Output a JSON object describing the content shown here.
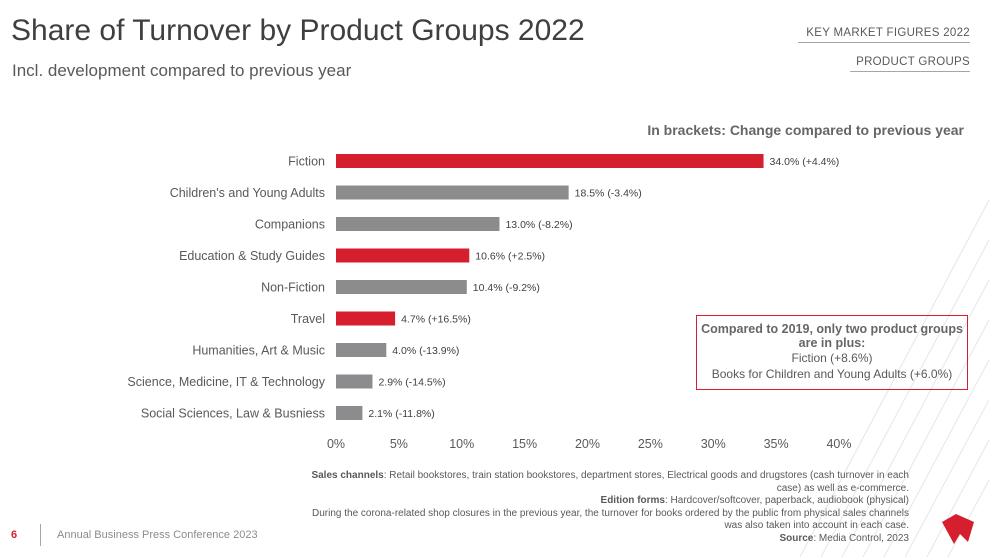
{
  "header": {
    "title": "Share of Turnover by Product Groups 2022",
    "subtitle": "Incl. development compared to previous year"
  },
  "nav": {
    "tab1": "KEY MARKET FIGURES 2022",
    "tab2": "PRODUCT GROUPS"
  },
  "colors": {
    "highlight": "#d61f2e",
    "neutral": "#8c8c8f",
    "text": "#595959"
  },
  "chart_data": {
    "type": "bar",
    "orientation": "horizontal",
    "note": "In brackets: Change compared to previous year",
    "categories": [
      "Fiction",
      "Children's and Young Adults",
      "Companions",
      "Education & Study Guides",
      "Non-Fiction",
      "Travel",
      "Humanities, Art & Music",
      "Science, Medicine, IT & Technology",
      "Social Sciences, Law & Busniess"
    ],
    "values": [
      34.0,
      18.5,
      13.0,
      10.6,
      10.4,
      4.7,
      4.0,
      2.9,
      2.1
    ],
    "changes": [
      4.4,
      -3.4,
      -8.2,
      2.5,
      -9.2,
      16.5,
      -13.9,
      -14.5,
      -11.8
    ],
    "data_labels": [
      "34.0% (+4.4%)",
      "18.5% (-3.4%)",
      "13.0% (-8.2%)",
      "10.6% (+2.5%)",
      "10.4% (-9.2%)",
      "4.7% (+16.5%)",
      "4.0% (-13.9%)",
      "2.9% (-14.5%)",
      "2.1% (-11.8%)"
    ],
    "xlim": [
      0,
      40
    ],
    "xticks": [
      0,
      5,
      10,
      15,
      20,
      25,
      30,
      35,
      40
    ],
    "xtick_labels": [
      "0%",
      "5%",
      "10%",
      "15%",
      "20%",
      "25%",
      "30%",
      "35%",
      "40%"
    ],
    "grid": false,
    "legend": "none"
  },
  "callout": {
    "title": "Compared to 2019, only two product groups are in plus:",
    "line1": "Fiction (+8.6%)",
    "line2": "Books for Children and Young Adults (+6.0%)"
  },
  "footnotes": {
    "sales_label": "Sales channels",
    "sales_text": ": Retail bookstores, train station bookstores, department stores, Electrical goods and drugstores (cash turnover in each case) as well as e-commerce.",
    "edition_label": "Edition forms",
    "edition_text": ": Hardcover/softcover, paperback, audiobook (physical)",
    "corona_text": "During the corona-related shop closures in the previous year, the turnover for books ordered by the public from physical sales channels was also taken into account in each case.",
    "source_label": "Source",
    "source_text": ": Media Control, 2023"
  },
  "footer": {
    "page_number": "6",
    "event": "Annual Business Press Conference 2023"
  }
}
